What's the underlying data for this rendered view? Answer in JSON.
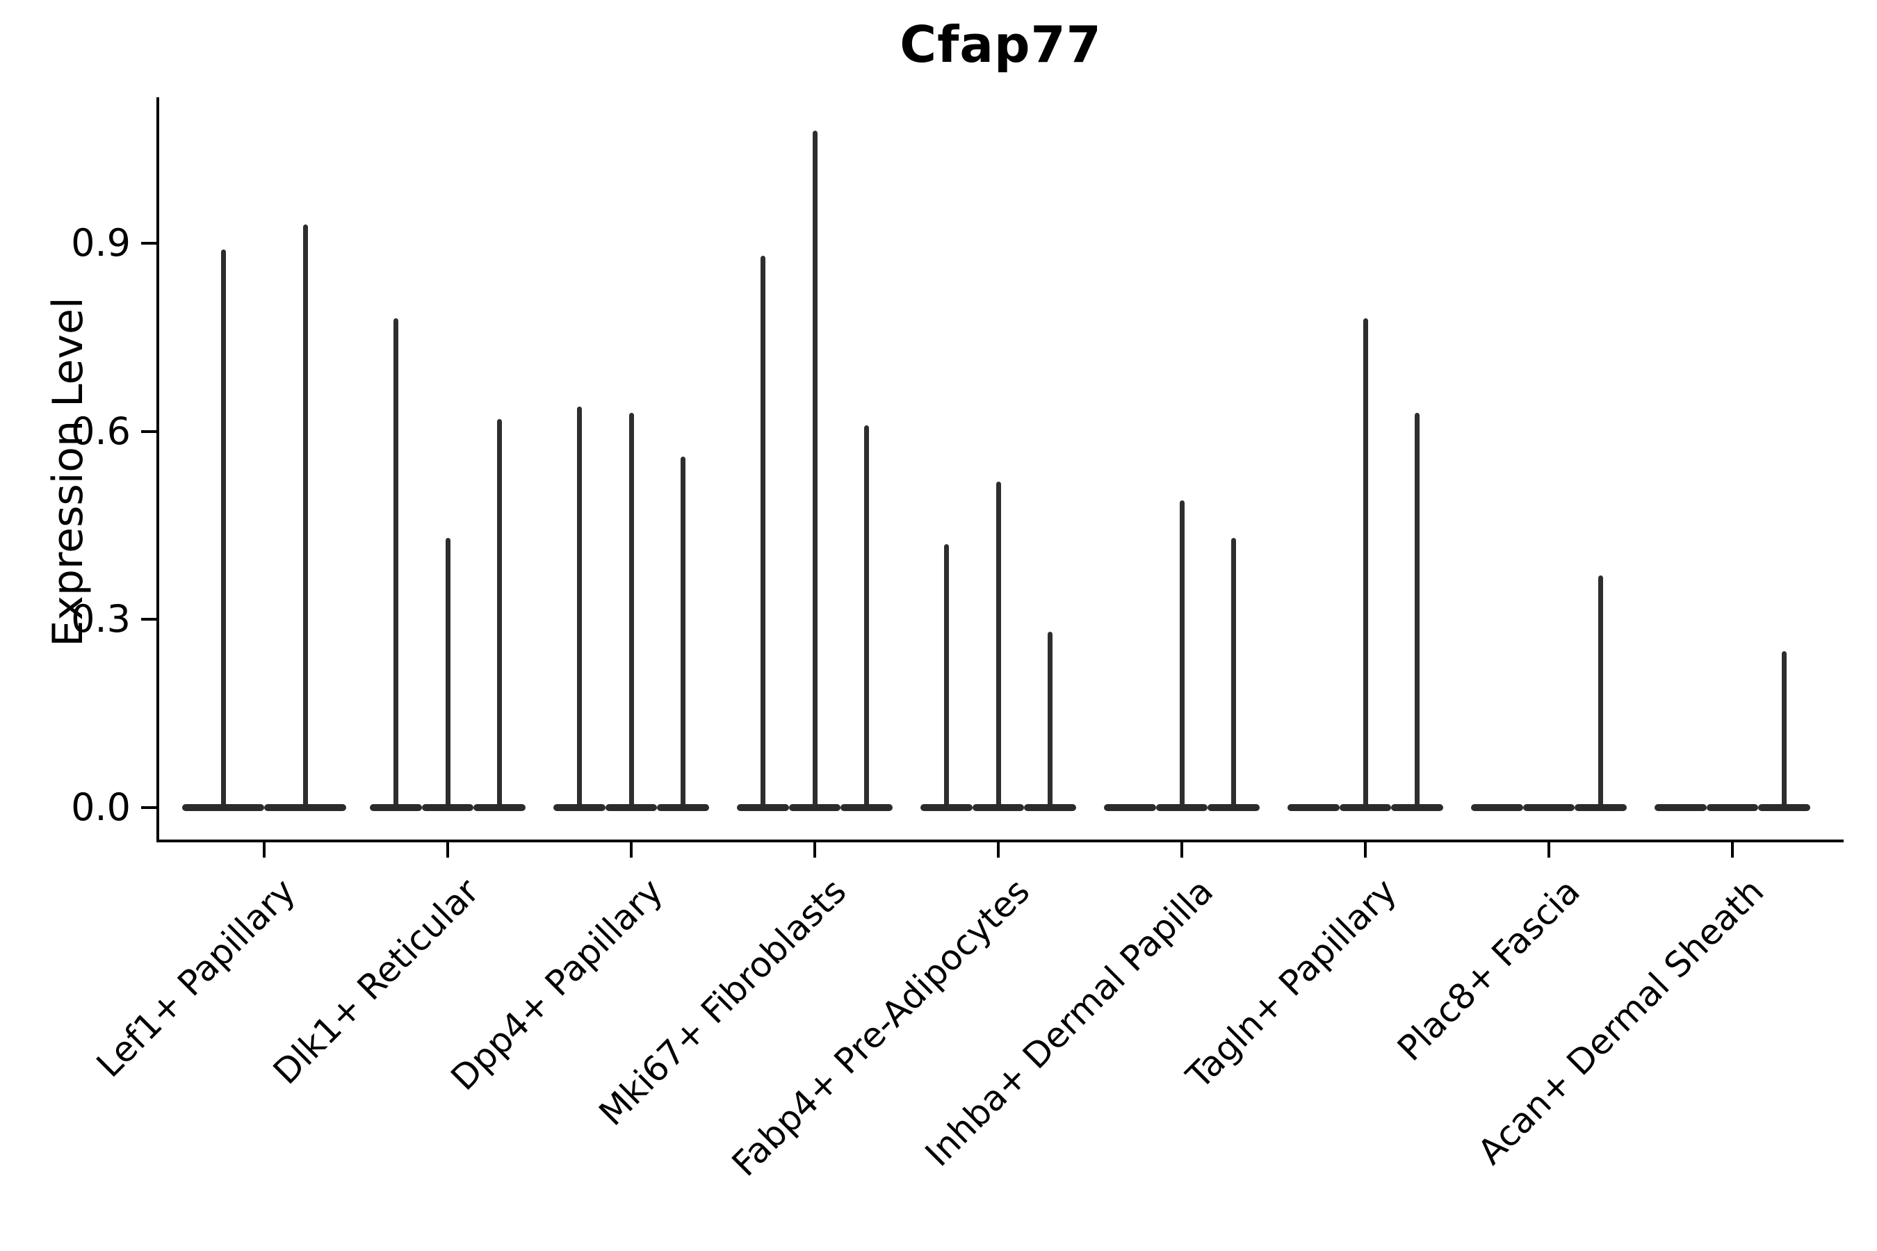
{
  "title": "Cfap77",
  "y_axis": {
    "label": "Expression Level",
    "ticks": [
      "0.0",
      "0.3",
      "0.6",
      "0.9"
    ],
    "tick_values": [
      0.0,
      0.3,
      0.6,
      0.9
    ]
  },
  "colors": {
    "violin": "#2b2b2b",
    "spike": "#2e2e2e",
    "axis": "#000000",
    "background": "#ffffff"
  },
  "chart_data": {
    "type": "violin",
    "title": "Cfap77",
    "xlabel": "",
    "ylabel": "Expression Level",
    "ylim": [
      -0.05,
      1.13
    ],
    "yticks": [
      0.0,
      0.3,
      0.6,
      0.9
    ],
    "grid": false,
    "legend": "none",
    "description": "Mostly-zero expression violins: each cell-type group contains narrow violins collapsed at 0 with thin spikes reaching the max expression value.",
    "categories": [
      "Lef1+ Papillary",
      "Dlk1+ Reticular",
      "Dpp4+ Papillary",
      "Mki67+ Fibroblasts",
      "Fabp4+ Pre-Adipocytes",
      "Inhba+ Dermal Papilla",
      "Tagln+ Papillary",
      "Plac8+ Fascia",
      "Acan+ Dermal Sheath"
    ],
    "groups": [
      {
        "category": "Lef1+ Papillary",
        "violin_max_values": [
          0.89,
          0.93
        ]
      },
      {
        "category": "Dlk1+ Reticular",
        "violin_max_values": [
          0.78,
          0.43,
          0.62
        ]
      },
      {
        "category": "Dpp4+ Papillary",
        "violin_max_values": [
          0.64,
          0.63,
          0.56
        ]
      },
      {
        "category": "Mki67+ Fibroblasts",
        "violin_max_values": [
          0.88,
          1.08,
          0.61
        ]
      },
      {
        "category": "Fabp4+ Pre-Adipocytes",
        "violin_max_values": [
          0.42,
          0.52,
          0.28
        ]
      },
      {
        "category": "Inhba+ Dermal Papilla",
        "violin_max_values": [
          0.0,
          0.49,
          0.43
        ]
      },
      {
        "category": "Tagln+ Papillary",
        "violin_max_values": [
          0.0,
          0.78,
          0.63
        ]
      },
      {
        "category": "Plac8+ Fascia",
        "violin_max_values": [
          0.0,
          0.0,
          0.37
        ]
      },
      {
        "category": "Acan+ Dermal Sheath",
        "violin_max_values": [
          0.0,
          0.0,
          0.25
        ]
      }
    ]
  }
}
